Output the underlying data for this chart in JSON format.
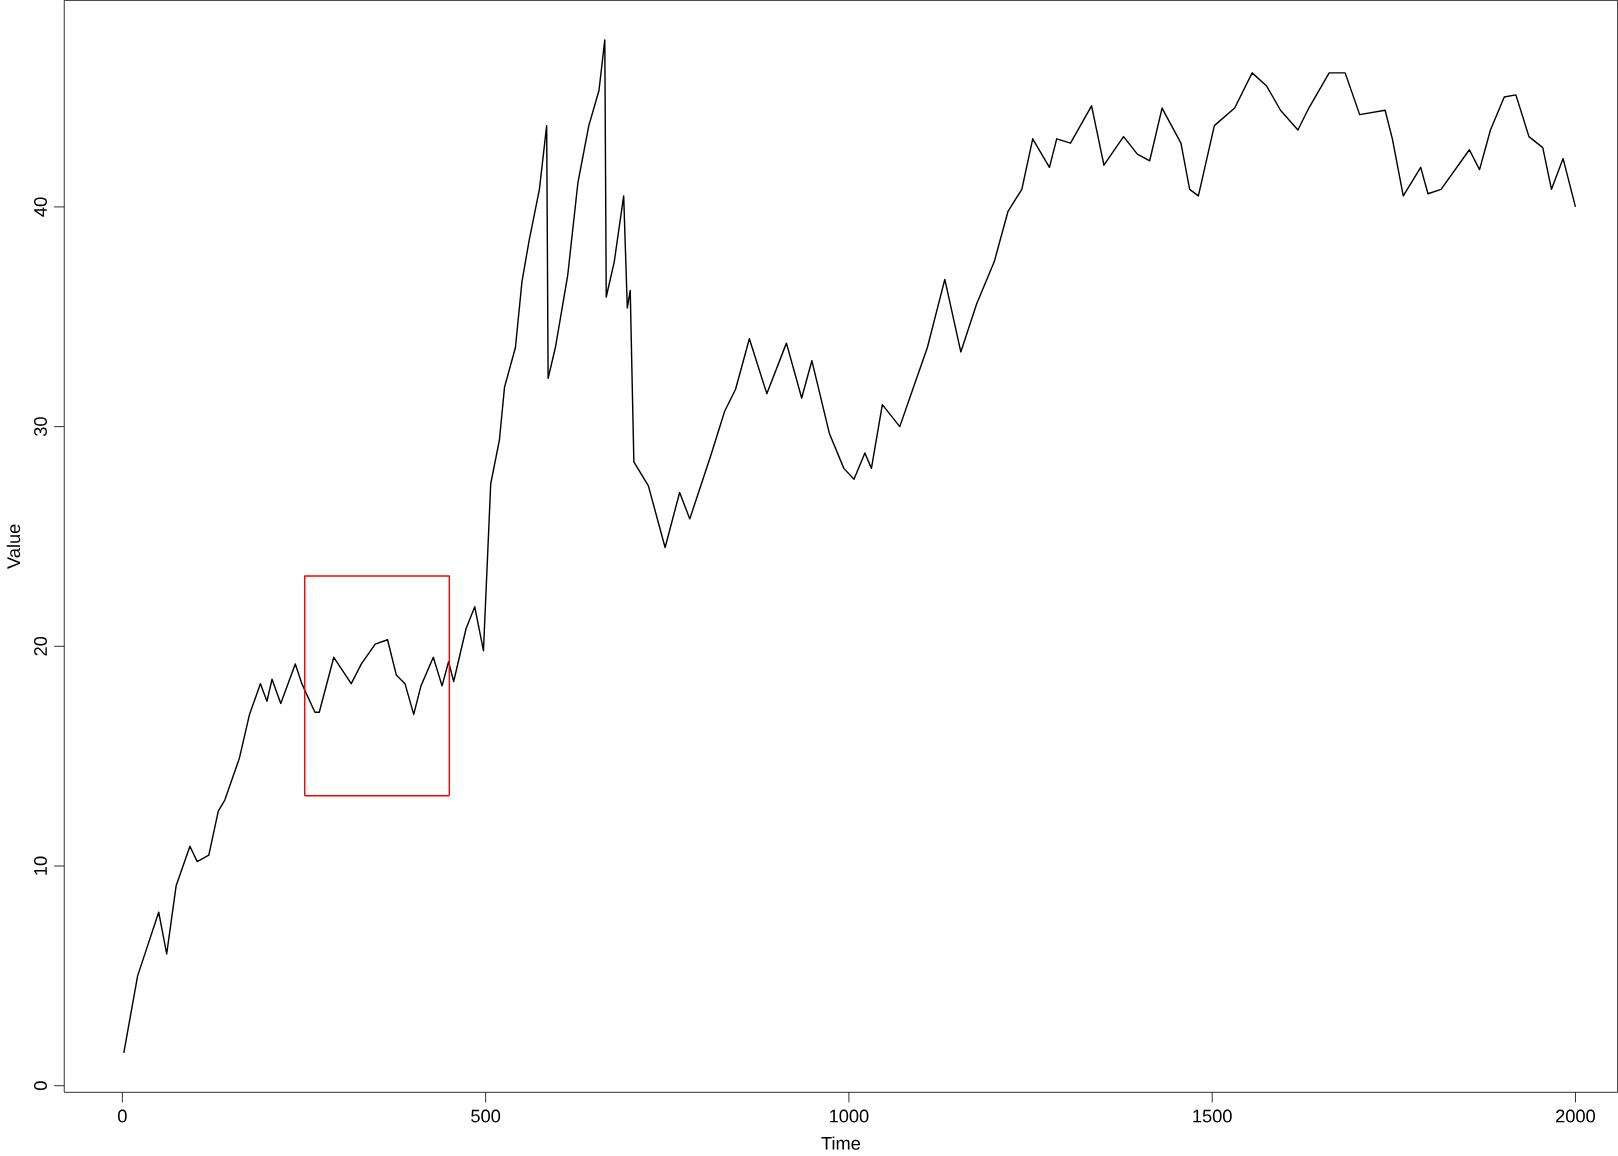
{
  "chart_data": {
    "type": "line",
    "xlabel": "Time",
    "ylabel": "Value",
    "xlim": [
      -80,
      2058
    ],
    "ylim": [
      -0.3,
      49.4
    ],
    "xticks": [
      0,
      500,
      1000,
      1500,
      2000
    ],
    "yticks": [
      0,
      10,
      20,
      30,
      40
    ],
    "grid": false,
    "line_style": "solid",
    "marker": "none",
    "series": [
      {
        "color": "#000000",
        "x": [
          2,
          21,
          50,
          61,
          74,
          93,
          103,
          119,
          132,
          141,
          161,
          175,
          190,
          199,
          206,
          218,
          238,
          247,
          265,
          271,
          291,
          315,
          329,
          348,
          365,
          377,
          389,
          401,
          411,
          428,
          440,
          449,
          456,
          473,
          485,
          497,
          507,
          519,
          526,
          541,
          550,
          560,
          574,
          584,
          586,
          596,
          613,
          627,
          642,
          656,
          664,
          666,
          677,
          690,
          695,
          699,
          704,
          724,
          747,
          767,
          781,
          810,
          829,
          844,
          863,
          887,
          914,
          935,
          949,
          973,
          993,
          1007,
          1022,
          1031,
          1046,
          1070,
          1089,
          1108,
          1132,
          1154,
          1176,
          1200,
          1219,
          1238,
          1253,
          1276,
          1286,
          1305,
          1334,
          1351,
          1378,
          1397,
          1414,
          1431,
          1457,
          1469,
          1481,
          1503,
          1531,
          1555,
          1575,
          1594,
          1618,
          1633,
          1661,
          1683,
          1703,
          1738,
          1748,
          1763,
          1787,
          1797,
          1815,
          1854,
          1868,
          1883,
          1902,
          1918,
          1936,
          1955,
          1967,
          1983,
          2000
        ],
        "values": [
          1.5,
          5.0,
          7.9,
          6.0,
          9.1,
          10.9,
          10.2,
          10.5,
          12.5,
          13.0,
          14.9,
          16.9,
          18.3,
          17.5,
          18.5,
          17.4,
          19.2,
          18.3,
          17.0,
          17.0,
          19.5,
          18.3,
          19.2,
          20.1,
          20.3,
          18.7,
          18.3,
          16.9,
          18.2,
          19.5,
          18.2,
          19.3,
          18.4,
          20.8,
          21.8,
          19.8,
          27.4,
          29.4,
          31.8,
          33.6,
          36.6,
          38.5,
          40.8,
          43.7,
          32.2,
          33.6,
          36.9,
          41.1,
          43.7,
          45.3,
          47.6,
          35.9,
          37.5,
          40.5,
          35.4,
          36.2,
          28.4,
          27.3,
          24.5,
          27.0,
          25.8,
          28.7,
          30.7,
          31.7,
          34.0,
          31.5,
          33.8,
          31.3,
          33.0,
          29.7,
          28.1,
          27.6,
          28.8,
          28.1,
          31.0,
          30.0,
          31.8,
          33.6,
          36.7,
          33.4,
          35.6,
          37.5,
          39.8,
          40.8,
          43.1,
          41.8,
          43.1,
          42.9,
          44.6,
          41.9,
          43.2,
          42.4,
          42.1,
          44.5,
          42.9,
          40.8,
          40.5,
          43.7,
          44.5,
          46.1,
          45.5,
          44.4,
          43.5,
          44.5,
          46.1,
          46.1,
          44.2,
          44.4,
          43.1,
          40.5,
          41.8,
          40.6,
          40.8,
          42.6,
          41.7,
          43.5,
          45.0,
          45.1,
          43.2,
          42.7,
          40.8,
          42.2,
          40.0
        ]
      },
      {
        "color": "#ff0000",
        "type": "line",
        "x": [
          251,
          251,
          450,
          450
        ],
        "values": [
          13.2,
          23.2,
          23.2,
          13.2
        ]
      },
      {
        "color": "#ff0000",
        "type": "line",
        "x": [
          251,
          450
        ],
        "values": [
          13.2,
          13.2
        ]
      }
    ]
  }
}
